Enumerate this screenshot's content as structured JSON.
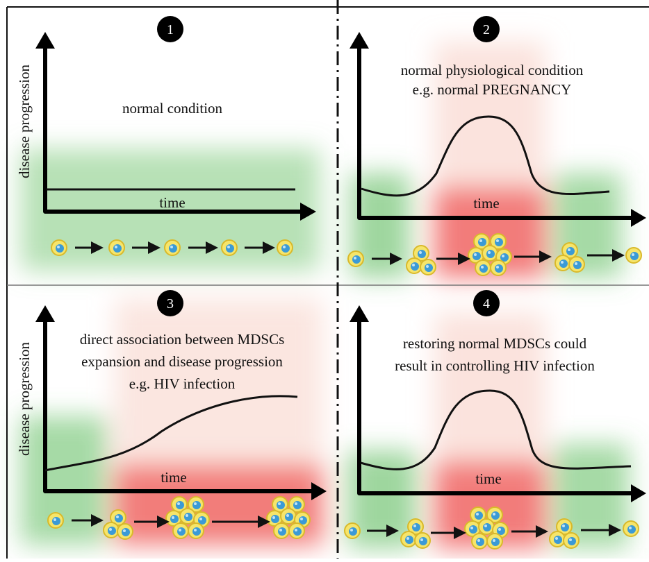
{
  "panels": [
    {
      "number": "1",
      "caption": [
        "normal condition"
      ],
      "x_label": "time",
      "y_label": "disease progression"
    },
    {
      "number": "2",
      "caption": [
        "normal physiological condition",
        "e.g. normal PREGNANCY"
      ],
      "x_label": "time"
    },
    {
      "number": "3",
      "caption": [
        "direct association between MDSCs",
        "expansion and disease progression",
        "e.g. HIV infection"
      ],
      "x_label": "time",
      "y_label": "disease progression"
    },
    {
      "number": "4",
      "caption": [
        "restoring normal MDSCs could",
        "result in controlling HIV infection"
      ],
      "x_label": "time"
    }
  ]
}
